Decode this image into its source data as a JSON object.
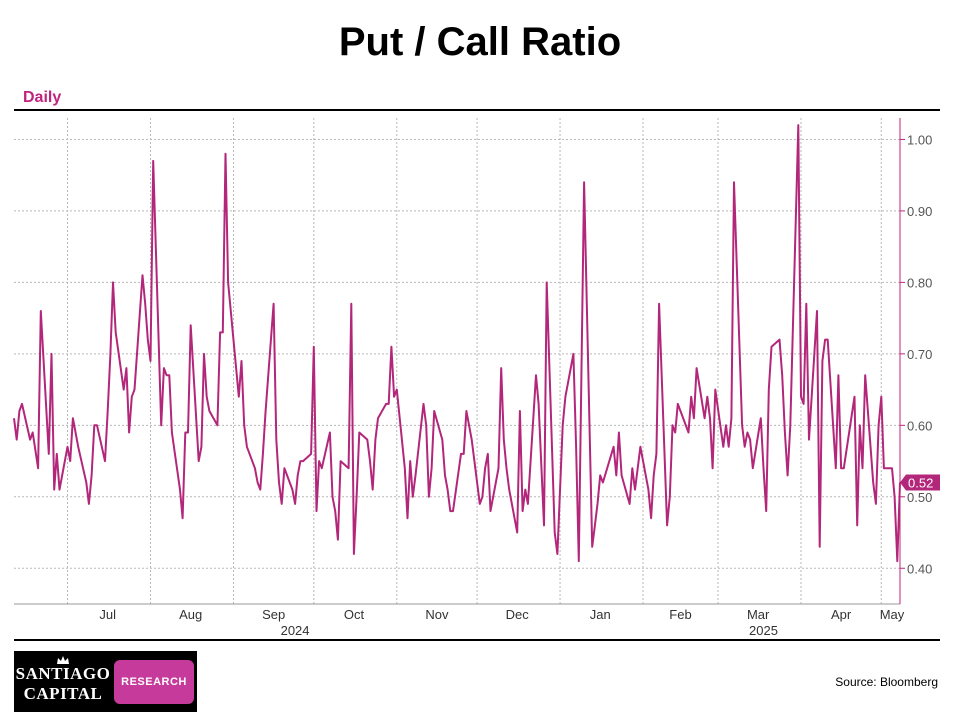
{
  "title": "Put / Call Ratio",
  "frequency": "Daily",
  "source": "Source: Bloomberg",
  "logo": {
    "line1": "Santiago",
    "line2": "Capital",
    "badge": "RESEARCH",
    "icon": "crown-icon"
  },
  "colors": {
    "line": "#b3277a",
    "label_bg": "#b3277a",
    "frequency": "#c0247f",
    "grid": "#b8b8b8",
    "badge_bg": "#c53a9a"
  },
  "chart_data": {
    "type": "line",
    "title": "Put / Call Ratio",
    "xlabel": "",
    "ylabel": "",
    "ylim": [
      0.35,
      1.03
    ],
    "yticks": [
      0.4,
      0.5,
      0.6,
      0.7,
      0.8,
      0.9,
      1.0
    ],
    "ytick_labels": [
      "0.40",
      "0.50",
      "0.60",
      "0.70",
      "0.80",
      "0.90",
      "1.00"
    ],
    "xlim": [
      "2024-06-11",
      "2025-05-08"
    ],
    "month_labels": [
      {
        "label": "Jul",
        "date": "2024-07-16"
      },
      {
        "label": "Aug",
        "date": "2024-08-16"
      },
      {
        "label": "Sep",
        "date": "2024-09-16"
      },
      {
        "label": "Oct",
        "date": "2024-10-16"
      },
      {
        "label": "Nov",
        "date": "2024-11-16"
      },
      {
        "label": "Dec",
        "date": "2024-12-16"
      },
      {
        "label": "Jan",
        "date": "2025-01-16"
      },
      {
        "label": "Feb",
        "date": "2025-02-15"
      },
      {
        "label": "Mar",
        "date": "2025-03-16"
      },
      {
        "label": "Apr",
        "date": "2025-04-16"
      },
      {
        "label": "May",
        "date": "2025-05-05"
      }
    ],
    "gridlines": [
      "2024-07-01",
      "2024-08-01",
      "2024-09-01",
      "2024-10-01",
      "2024-11-01",
      "2024-12-01",
      "2025-01-01",
      "2025-02-01",
      "2025-03-01",
      "2025-04-01",
      "2025-05-01"
    ],
    "year_labels": [
      {
        "label": "2024",
        "date": "2024-09-24"
      },
      {
        "label": "2025",
        "date": "2025-03-18"
      }
    ],
    "last_value_label": "0.52",
    "grid": true,
    "series": [
      {
        "name": "",
        "points": [
          [
            "2024-06-11",
            0.61
          ],
          [
            "2024-06-12",
            0.58
          ],
          [
            "2024-06-13",
            0.62
          ],
          [
            "2024-06-14",
            0.63
          ],
          [
            "2024-06-17",
            0.58
          ],
          [
            "2024-06-18",
            0.59
          ],
          [
            "2024-06-20",
            0.54
          ],
          [
            "2024-06-21",
            0.76
          ],
          [
            "2024-06-24",
            0.56
          ],
          [
            "2024-06-25",
            0.7
          ],
          [
            "2024-06-26",
            0.51
          ],
          [
            "2024-06-27",
            0.56
          ],
          [
            "2024-06-28",
            0.51
          ],
          [
            "2024-07-01",
            0.57
          ],
          [
            "2024-07-02",
            0.55
          ],
          [
            "2024-07-03",
            0.61
          ],
          [
            "2024-07-05",
            0.57
          ],
          [
            "2024-07-08",
            0.52
          ],
          [
            "2024-07-09",
            0.49
          ],
          [
            "2024-07-10",
            0.53
          ],
          [
            "2024-07-11",
            0.6
          ],
          [
            "2024-07-12",
            0.6
          ],
          [
            "2024-07-15",
            0.55
          ],
          [
            "2024-07-16",
            0.62
          ],
          [
            "2024-07-17",
            0.7
          ],
          [
            "2024-07-18",
            0.8
          ],
          [
            "2024-07-19",
            0.73
          ],
          [
            "2024-07-22",
            0.65
          ],
          [
            "2024-07-23",
            0.68
          ],
          [
            "2024-07-24",
            0.59
          ],
          [
            "2024-07-25",
            0.64
          ],
          [
            "2024-07-26",
            0.65
          ],
          [
            "2024-07-29",
            0.81
          ],
          [
            "2024-07-30",
            0.77
          ],
          [
            "2024-07-31",
            0.72
          ],
          [
            "2024-08-01",
            0.69
          ],
          [
            "2024-08-02",
            0.97
          ],
          [
            "2024-08-05",
            0.6
          ],
          [
            "2024-08-06",
            0.68
          ],
          [
            "2024-08-07",
            0.67
          ],
          [
            "2024-08-08",
            0.67
          ],
          [
            "2024-08-09",
            0.59
          ],
          [
            "2024-08-12",
            0.51
          ],
          [
            "2024-08-13",
            0.47
          ],
          [
            "2024-08-14",
            0.59
          ],
          [
            "2024-08-15",
            0.59
          ],
          [
            "2024-08-16",
            0.74
          ],
          [
            "2024-08-19",
            0.55
          ],
          [
            "2024-08-20",
            0.57
          ],
          [
            "2024-08-21",
            0.7
          ],
          [
            "2024-08-22",
            0.64
          ],
          [
            "2024-08-23",
            0.62
          ],
          [
            "2024-08-26",
            0.6
          ],
          [
            "2024-08-27",
            0.73
          ],
          [
            "2024-08-28",
            0.73
          ],
          [
            "2024-08-29",
            0.98
          ],
          [
            "2024-08-30",
            0.8
          ],
          [
            "2024-09-03",
            0.64
          ],
          [
            "2024-09-04",
            0.69
          ],
          [
            "2024-09-05",
            0.6
          ],
          [
            "2024-09-06",
            0.57
          ],
          [
            "2024-09-09",
            0.54
          ],
          [
            "2024-09-10",
            0.52
          ],
          [
            "2024-09-11",
            0.51
          ],
          [
            "2024-09-12",
            0.56
          ],
          [
            "2024-09-13",
            0.62
          ],
          [
            "2024-09-16",
            0.77
          ],
          [
            "2024-09-17",
            0.58
          ],
          [
            "2024-09-18",
            0.52
          ],
          [
            "2024-09-19",
            0.49
          ],
          [
            "2024-09-20",
            0.54
          ],
          [
            "2024-09-23",
            0.51
          ],
          [
            "2024-09-24",
            0.49
          ],
          [
            "2024-09-25",
            0.53
          ],
          [
            "2024-09-26",
            0.55
          ],
          [
            "2024-09-27",
            0.55
          ],
          [
            "2024-09-30",
            0.56
          ],
          [
            "2024-10-01",
            0.71
          ],
          [
            "2024-10-02",
            0.48
          ],
          [
            "2024-10-03",
            0.55
          ],
          [
            "2024-10-04",
            0.54
          ],
          [
            "2024-10-07",
            0.59
          ],
          [
            "2024-10-08",
            0.5
          ],
          [
            "2024-10-09",
            0.48
          ],
          [
            "2024-10-10",
            0.44
          ],
          [
            "2024-10-11",
            0.55
          ],
          [
            "2024-10-14",
            0.54
          ],
          [
            "2024-10-15",
            0.77
          ],
          [
            "2024-10-16",
            0.42
          ],
          [
            "2024-10-17",
            0.5
          ],
          [
            "2024-10-18",
            0.59
          ],
          [
            "2024-10-21",
            0.58
          ],
          [
            "2024-10-22",
            0.55
          ],
          [
            "2024-10-23",
            0.51
          ],
          [
            "2024-10-24",
            0.58
          ],
          [
            "2024-10-25",
            0.61
          ],
          [
            "2024-10-28",
            0.63
          ],
          [
            "2024-10-29",
            0.63
          ],
          [
            "2024-10-30",
            0.71
          ],
          [
            "2024-10-31",
            0.64
          ],
          [
            "2024-11-01",
            0.65
          ],
          [
            "2024-11-04",
            0.54
          ],
          [
            "2024-11-05",
            0.47
          ],
          [
            "2024-11-06",
            0.55
          ],
          [
            "2024-11-07",
            0.5
          ],
          [
            "2024-11-08",
            0.53
          ],
          [
            "2024-11-11",
            0.63
          ],
          [
            "2024-11-12",
            0.6
          ],
          [
            "2024-11-13",
            0.5
          ],
          [
            "2024-11-14",
            0.54
          ],
          [
            "2024-11-15",
            0.62
          ],
          [
            "2024-11-18",
            0.58
          ],
          [
            "2024-11-19",
            0.53
          ],
          [
            "2024-11-20",
            0.51
          ],
          [
            "2024-11-21",
            0.48
          ],
          [
            "2024-11-22",
            0.48
          ],
          [
            "2024-11-25",
            0.56
          ],
          [
            "2024-11-26",
            0.56
          ],
          [
            "2024-11-27",
            0.62
          ],
          [
            "2024-11-29",
            0.58
          ],
          [
            "2024-12-02",
            0.49
          ],
          [
            "2024-12-03",
            0.5
          ],
          [
            "2024-12-04",
            0.54
          ],
          [
            "2024-12-05",
            0.56
          ],
          [
            "2024-12-06",
            0.48
          ],
          [
            "2024-12-09",
            0.54
          ],
          [
            "2024-12-10",
            0.68
          ],
          [
            "2024-12-11",
            0.58
          ],
          [
            "2024-12-12",
            0.54
          ],
          [
            "2024-12-13",
            0.51
          ],
          [
            "2024-12-16",
            0.45
          ],
          [
            "2024-12-17",
            0.62
          ],
          [
            "2024-12-18",
            0.48
          ],
          [
            "2024-12-19",
            0.51
          ],
          [
            "2024-12-20",
            0.49
          ],
          [
            "2024-12-23",
            0.67
          ],
          [
            "2024-12-24",
            0.63
          ],
          [
            "2024-12-26",
            0.46
          ],
          [
            "2024-12-27",
            0.8
          ],
          [
            "2024-12-30",
            0.45
          ],
          [
            "2024-12-31",
            0.42
          ],
          [
            "2025-01-02",
            0.6
          ],
          [
            "2025-01-03",
            0.64
          ],
          [
            "2025-01-06",
            0.7
          ],
          [
            "2025-01-07",
            0.57
          ],
          [
            "2025-01-08",
            0.41
          ],
          [
            "2025-01-10",
            0.94
          ],
          [
            "2025-01-13",
            0.43
          ],
          [
            "2025-01-14",
            0.46
          ],
          [
            "2025-01-15",
            0.49
          ],
          [
            "2025-01-16",
            0.53
          ],
          [
            "2025-01-17",
            0.52
          ],
          [
            "2025-01-21",
            0.57
          ],
          [
            "2025-01-22",
            0.53
          ],
          [
            "2025-01-23",
            0.59
          ],
          [
            "2025-01-24",
            0.53
          ],
          [
            "2025-01-27",
            0.49
          ],
          [
            "2025-01-28",
            0.54
          ],
          [
            "2025-01-29",
            0.51
          ],
          [
            "2025-01-30",
            0.54
          ],
          [
            "2025-01-31",
            0.57
          ],
          [
            "2025-02-03",
            0.51
          ],
          [
            "2025-02-04",
            0.47
          ],
          [
            "2025-02-05",
            0.53
          ],
          [
            "2025-02-06",
            0.56
          ],
          [
            "2025-02-07",
            0.77
          ],
          [
            "2025-02-10",
            0.46
          ],
          [
            "2025-02-11",
            0.5
          ],
          [
            "2025-02-12",
            0.6
          ],
          [
            "2025-02-13",
            0.59
          ],
          [
            "2025-02-14",
            0.63
          ],
          [
            "2025-02-18",
            0.59
          ],
          [
            "2025-02-19",
            0.64
          ],
          [
            "2025-02-20",
            0.61
          ],
          [
            "2025-02-21",
            0.68
          ],
          [
            "2025-02-24",
            0.61
          ],
          [
            "2025-02-25",
            0.64
          ],
          [
            "2025-02-26",
            0.61
          ],
          [
            "2025-02-27",
            0.54
          ],
          [
            "2025-02-28",
            0.65
          ],
          [
            "2025-03-03",
            0.57
          ],
          [
            "2025-03-04",
            0.6
          ],
          [
            "2025-03-05",
            0.57
          ],
          [
            "2025-03-06",
            0.61
          ],
          [
            "2025-03-07",
            0.94
          ],
          [
            "2025-03-10",
            0.6
          ],
          [
            "2025-03-11",
            0.57
          ],
          [
            "2025-03-12",
            0.59
          ],
          [
            "2025-03-13",
            0.58
          ],
          [
            "2025-03-14",
            0.54
          ],
          [
            "2025-03-17",
            0.61
          ],
          [
            "2025-03-18",
            0.54
          ],
          [
            "2025-03-19",
            0.48
          ],
          [
            "2025-03-20",
            0.65
          ],
          [
            "2025-03-21",
            0.71
          ],
          [
            "2025-03-24",
            0.72
          ],
          [
            "2025-03-25",
            0.67
          ],
          [
            "2025-03-26",
            0.59
          ],
          [
            "2025-03-27",
            0.53
          ],
          [
            "2025-03-28",
            0.6
          ],
          [
            "2025-03-31",
            1.02
          ],
          [
            "2025-04-01",
            0.64
          ],
          [
            "2025-04-02",
            0.63
          ],
          [
            "2025-04-03",
            0.77
          ],
          [
            "2025-04-04",
            0.58
          ],
          [
            "2025-04-07",
            0.76
          ],
          [
            "2025-04-08",
            0.43
          ],
          [
            "2025-04-09",
            0.69
          ],
          [
            "2025-04-10",
            0.72
          ],
          [
            "2025-04-11",
            0.72
          ],
          [
            "2025-04-14",
            0.54
          ],
          [
            "2025-04-15",
            0.67
          ],
          [
            "2025-04-16",
            0.54
          ],
          [
            "2025-04-17",
            0.54
          ],
          [
            "2025-04-21",
            0.64
          ],
          [
            "2025-04-22",
            0.46
          ],
          [
            "2025-04-23",
            0.6
          ],
          [
            "2025-04-24",
            0.54
          ],
          [
            "2025-04-25",
            0.67
          ],
          [
            "2025-04-28",
            0.52
          ],
          [
            "2025-04-29",
            0.49
          ],
          [
            "2025-04-30",
            0.6
          ],
          [
            "2025-05-01",
            0.64
          ],
          [
            "2025-05-02",
            0.54
          ],
          [
            "2025-05-05",
            0.54
          ],
          [
            "2025-05-06",
            0.5
          ],
          [
            "2025-05-07",
            0.41
          ],
          [
            "2025-05-08",
            0.52
          ]
        ]
      }
    ]
  }
}
